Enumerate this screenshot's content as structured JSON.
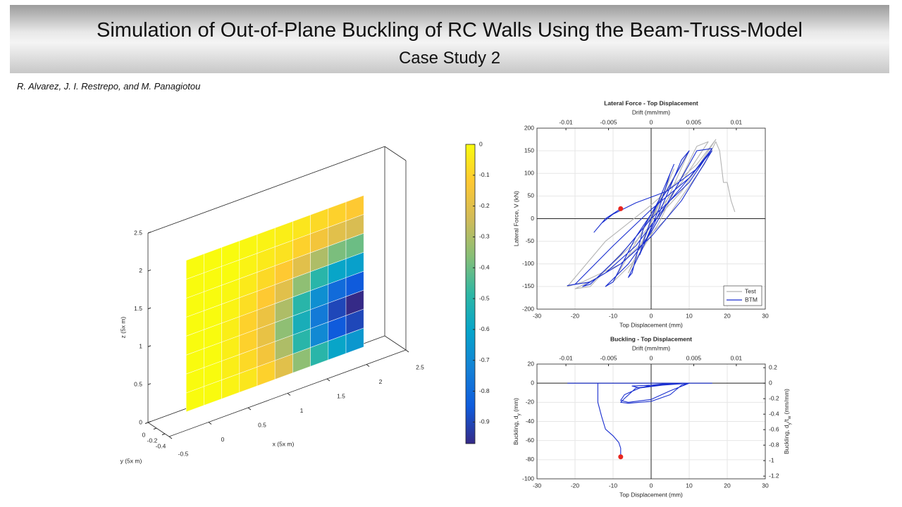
{
  "header": {
    "title": "Simulation of Out-of-Plane Buckling of RC Walls Using the Beam-Truss-Model",
    "subtitle": "Case Study 2",
    "authors": "R. Alvarez, J. I. Restrepo, and M. Panagiotou"
  },
  "chart_data": [
    {
      "type": "surface3d",
      "xlabel": "x (5x m)",
      "ylabel": "y (5x m)",
      "zlabel": "z (5x m)",
      "xlim": [
        -0.5,
        2.5
      ],
      "ylim": [
        -0.5,
        0
      ],
      "zlim": [
        0,
        2.5
      ],
      "xticks": [
        -0.5,
        0,
        0.5,
        1,
        1.5,
        2,
        2.5
      ],
      "yticks": [
        -0.4,
        -0.2,
        0
      ],
      "zticks": [
        0,
        0.5,
        1,
        1.5,
        2,
        2.5
      ],
      "colormap": "parula",
      "clim": [
        -0.97,
        0
      ],
      "cticks": [
        0,
        -0.1,
        -0.2,
        -0.3,
        -0.4,
        -0.5,
        -0.6,
        -0.7,
        -0.8,
        -0.9
      ],
      "surface": {
        "y": -0.25,
        "x": [
          -0.15,
          0.075,
          0.3,
          0.525,
          0.75,
          0.975,
          1.2,
          1.425,
          1.65,
          1.875,
          2.1
        ],
        "z": [
          0.1,
          0.35,
          0.6,
          0.85,
          1.1,
          1.35,
          1.6,
          1.85,
          2.1
        ],
        "values": [
          [
            0,
            0,
            -0.02,
            -0.05,
            -0.1,
            -0.2,
            -0.35,
            -0.5,
            -0.6,
            -0.65
          ],
          [
            0,
            0,
            -0.03,
            -0.08,
            -0.15,
            -0.3,
            -0.5,
            -0.7,
            -0.85,
            -0.9
          ],
          [
            0,
            0,
            -0.03,
            -0.1,
            -0.18,
            -0.35,
            -0.55,
            -0.75,
            -0.9,
            -0.97
          ],
          [
            0,
            0,
            -0.03,
            -0.1,
            -0.17,
            -0.3,
            -0.5,
            -0.68,
            -0.8,
            -0.85
          ],
          [
            0,
            0,
            -0.02,
            -0.07,
            -0.12,
            -0.2,
            -0.35,
            -0.5,
            -0.6,
            -0.62
          ],
          [
            0,
            0,
            -0.01,
            -0.04,
            -0.08,
            -0.12,
            -0.2,
            -0.3,
            -0.38,
            -0.4
          ],
          [
            0,
            0,
            0,
            -0.02,
            -0.04,
            -0.06,
            -0.1,
            -0.15,
            -0.2,
            -0.22
          ],
          [
            0,
            0,
            0,
            -0.01,
            -0.02,
            -0.03,
            -0.05,
            -0.08,
            -0.1,
            -0.12
          ]
        ]
      }
    },
    {
      "type": "line",
      "title": "Lateral Force - Top Displacement",
      "xlabel": "Top Displacement (mm)",
      "x2label": "Drift (mm/mm)",
      "ylabel": "Lateral Force, V (kN)",
      "xlim": [
        -30,
        30
      ],
      "xticks": [
        -30,
        -20,
        -10,
        0,
        10,
        20,
        30
      ],
      "x2lim": [
        -0.0134,
        0.0134
      ],
      "x2ticks": [
        -0.01,
        -0.005,
        0,
        0.005,
        0.01
      ],
      "ylim": [
        -200,
        200
      ],
      "yticks": [
        -200,
        -150,
        -100,
        -50,
        0,
        50,
        100,
        150,
        200
      ],
      "grid": true,
      "legend": "lower right",
      "series": [
        {
          "name": "Test",
          "color": "#b4b4b4",
          "x": [
            0,
            3,
            -3,
            0,
            6,
            -6,
            2,
            10,
            -10,
            -4,
            2,
            12,
            15,
            8,
            -6,
            -16,
            -20,
            -14,
            -4,
            8,
            17,
            12,
            0,
            -12,
            -22,
            -18,
            -8,
            4,
            14,
            17,
            18,
            19,
            20,
            21,
            22
          ],
          "values": [
            0,
            60,
            -70,
            -10,
            110,
            -120,
            0,
            150,
            -140,
            -90,
            -10,
            160,
            170,
            80,
            -60,
            -150,
            -155,
            -130,
            -50,
            60,
            175,
            120,
            30,
            -50,
            -150,
            -140,
            -100,
            0,
            120,
            170,
            150,
            80,
            80,
            40,
            15
          ]
        },
        {
          "name": "BTM",
          "color": "#1a2fd0",
          "x": [
            0,
            2,
            3,
            0,
            -2,
            -3,
            0,
            2,
            5,
            6,
            2,
            -2,
            -5,
            -6,
            -2,
            2,
            8,
            10,
            4,
            -4,
            -10,
            -12,
            -6,
            0,
            6,
            12,
            16,
            10,
            0,
            -8,
            -16,
            -18,
            -12,
            -4,
            4,
            12,
            16,
            10,
            0,
            -10,
            -20,
            -22,
            -16,
            -8,
            0,
            8,
            16,
            12,
            4,
            -4,
            -10,
            -13,
            -15,
            -12,
            -8
          ],
          "values": [
            0,
            40,
            60,
            0,
            -50,
            -80,
            -20,
            20,
            100,
            120,
            40,
            -20,
            -120,
            -130,
            -60,
            10,
            130,
            150,
            60,
            -40,
            -140,
            -150,
            -100,
            -30,
            60,
            150,
            155,
            80,
            0,
            -80,
            -145,
            -150,
            -120,
            -60,
            30,
            110,
            155,
            90,
            20,
            -60,
            -145,
            -148,
            -140,
            -100,
            -40,
            40,
            150,
            110,
            60,
            35,
            10,
            -10,
            -30,
            0,
            22
          ]
        }
      ],
      "marker": {
        "x": -8,
        "y": 22,
        "color": "#e8261f"
      }
    },
    {
      "type": "line",
      "title": "Buckling - Top Displacement",
      "xlabel": "Top Displacement (mm)",
      "x2label": "Drift (mm/mm)",
      "ylabel": [
        "Buckling, d",
        "y",
        " (mm)"
      ],
      "y2label": [
        "Buckling, d",
        "y",
        "/t",
        "w",
        " (mm/mm)"
      ],
      "xlim": [
        -30,
        30
      ],
      "xticks": [
        -30,
        -20,
        -10,
        0,
        10,
        20,
        30
      ],
      "x2lim": [
        -0.0134,
        0.0134
      ],
      "x2ticks": [
        -0.01,
        -0.005,
        0,
        0.005,
        0.01
      ],
      "ylim": [
        -100,
        20
      ],
      "yticks": [
        -100,
        -80,
        -60,
        -40,
        -20,
        0,
        20
      ],
      "y2lim": [
        -1.235,
        0.247
      ],
      "y2ticks": [
        -1.2,
        -1,
        -0.8,
        -0.6,
        -0.4,
        -0.2,
        0,
        0.2
      ],
      "grid": true,
      "series": [
        {
          "name": "BTM",
          "color": "#1a2fd0",
          "x": [
            -22,
            0,
            10,
            16,
            5,
            0,
            -3,
            -5,
            0,
            4,
            10,
            4,
            -4,
            -7,
            -8,
            -6,
            0,
            5,
            8,
            10,
            3,
            -3,
            -7,
            -8,
            -6,
            0,
            5,
            10,
            0,
            -14,
            -14,
            -13,
            -12,
            -10,
            -8.5,
            -8,
            -8
          ],
          "values": [
            0,
            0,
            0,
            0,
            0,
            -2,
            -5,
            -3,
            -2,
            -1,
            0,
            -1,
            -5,
            -16,
            -20,
            -21,
            -19,
            -12,
            -2,
            0,
            -2,
            -5,
            -12,
            -18,
            -20,
            -17,
            -8,
            0,
            0,
            0,
            -20,
            -35,
            -48,
            -55,
            -62,
            -68,
            -77
          ]
        }
      ],
      "marker": {
        "x": -8,
        "y": -77,
        "color": "#e8261f"
      }
    }
  ]
}
